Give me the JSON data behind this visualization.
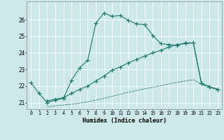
{
  "xlabel": "Humidex (Indice chaleur)",
  "background_color": "#cce8e8",
  "grid_color": "#b0d8d8",
  "line_color": "#1a7a6e",
  "xlim": [
    -0.5,
    23.5
  ],
  "ylim": [
    20.6,
    27.1
  ],
  "xticks": [
    0,
    1,
    2,
    3,
    4,
    5,
    6,
    7,
    8,
    9,
    10,
    11,
    12,
    13,
    14,
    15,
    16,
    17,
    18,
    19,
    20,
    21,
    22,
    23
  ],
  "yticks": [
    21,
    22,
    23,
    24,
    25,
    26
  ],
  "line1_x": [
    0,
    1,
    2,
    3,
    4,
    5,
    6,
    7,
    8,
    9,
    10,
    11,
    12,
    13,
    14,
    15,
    16,
    17,
    18,
    19,
    20,
    21,
    22,
    23
  ],
  "line1_y": [
    22.2,
    21.55,
    21.0,
    21.15,
    21.25,
    22.35,
    23.1,
    23.55,
    25.8,
    26.4,
    26.2,
    26.25,
    25.95,
    25.75,
    25.7,
    25.05,
    24.55,
    24.5,
    24.45,
    24.6,
    24.6,
    22.15,
    21.95,
    21.8
  ],
  "line2_x": [
    2,
    3,
    4,
    5,
    6,
    7,
    8,
    9,
    10,
    11,
    12,
    13,
    14,
    15,
    16,
    17,
    18,
    19,
    20,
    21,
    22,
    23
  ],
  "line2_y": [
    21.1,
    21.2,
    21.3,
    21.55,
    21.8,
    22.0,
    22.3,
    22.6,
    22.95,
    23.15,
    23.4,
    23.6,
    23.8,
    24.0,
    24.15,
    24.35,
    24.5,
    24.55,
    24.6,
    22.15,
    21.95,
    21.8
  ],
  "line3_x": [
    2,
    3,
    4,
    5,
    6,
    7,
    8,
    9,
    10,
    11,
    12,
    13,
    14,
    15,
    16,
    17,
    18,
    19,
    20,
    21,
    22,
    23
  ],
  "line3_y": [
    20.75,
    20.8,
    20.85,
    20.9,
    20.97,
    21.05,
    21.15,
    21.25,
    21.38,
    21.5,
    21.62,
    21.73,
    21.83,
    21.92,
    22.02,
    22.12,
    22.22,
    22.3,
    22.38,
    22.1,
    21.87,
    21.8
  ]
}
